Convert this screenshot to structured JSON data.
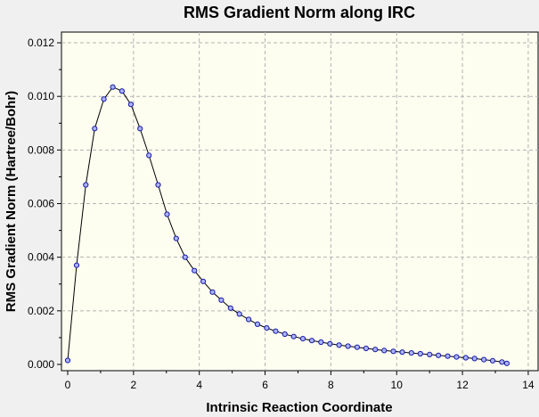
{
  "chart_data": {
    "type": "line",
    "title": "RMS Gradient Norm along IRC",
    "xlabel": "Intrinsic Reaction Coordinate",
    "ylabel": "RMS Gradient Norm (Hartree/Bohr)",
    "xlim": [
      0,
      14
    ],
    "ylim": [
      0,
      0.012
    ],
    "x_ticks": [
      "0",
      "2",
      "4",
      "6",
      "8",
      "10",
      "12",
      "14"
    ],
    "y_ticks": [
      "0.000",
      "0.002",
      "0.004",
      "0.006",
      "0.008",
      "0.010",
      "0.012"
    ],
    "x_tick_values": [
      0,
      2,
      4,
      6,
      8,
      10,
      12,
      14
    ],
    "y_tick_values": [
      0,
      0.002,
      0.004,
      0.006,
      0.008,
      0.01,
      0.012
    ],
    "grid": true,
    "colors": {
      "plot_background": "#fdfdf0",
      "line": "#000000",
      "marker_fill": "#aab4ff",
      "marker_stroke": "#1a1aa0",
      "grid": "#b4b4b4"
    },
    "series": [
      {
        "x": [
          0.0,
          0.27,
          0.55,
          0.82,
          1.1,
          1.37,
          1.65,
          1.92,
          2.2,
          2.47,
          2.75,
          3.02,
          3.3,
          3.57,
          3.85,
          4.12,
          4.4,
          4.67,
          4.95,
          5.22,
          5.5,
          5.77,
          6.05,
          6.32,
          6.6,
          6.87,
          7.15,
          7.42,
          7.7,
          7.97,
          8.25,
          8.52,
          8.8,
          9.07,
          9.35,
          9.62,
          9.9,
          10.17,
          10.45,
          10.72,
          11.0,
          11.27,
          11.55,
          11.82,
          12.1,
          12.37,
          12.65,
          12.92,
          13.2,
          13.35
        ],
        "y": [
          0.00015,
          0.0037,
          0.0067,
          0.0088,
          0.0099,
          0.01035,
          0.0102,
          0.0097,
          0.0088,
          0.0078,
          0.0067,
          0.0056,
          0.0047,
          0.004,
          0.0035,
          0.0031,
          0.0027,
          0.0024,
          0.0021,
          0.00188,
          0.00168,
          0.0015,
          0.00136,
          0.00124,
          0.00113,
          0.00104,
          0.00096,
          0.00089,
          0.00083,
          0.00077,
          0.00072,
          0.00068,
          0.00064,
          0.0006,
          0.00056,
          0.00052,
          0.00049,
          0.00046,
          0.00043,
          0.0004,
          0.00037,
          0.00034,
          0.00031,
          0.00028,
          0.00025,
          0.00022,
          0.00018,
          0.00014,
          9e-05,
          4e-05
        ]
      }
    ]
  }
}
